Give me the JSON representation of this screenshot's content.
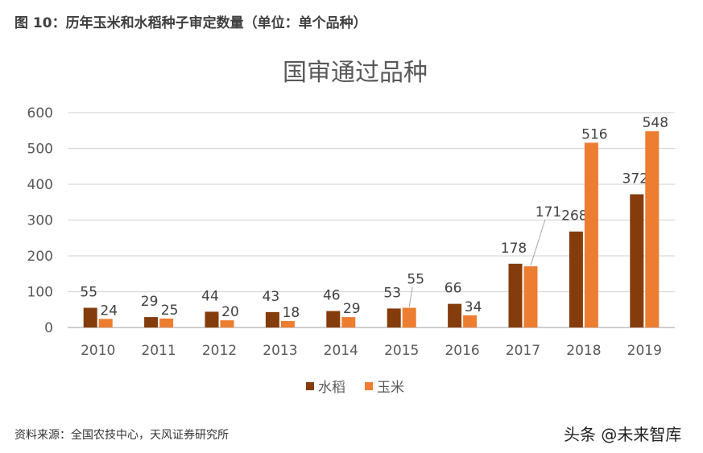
{
  "figure_title": "图 10：历年玉米和水稻种子审定数量（单位：单个品种）",
  "source": "资料来源：全国农技中心，天风证券研究所",
  "watermark": "头条 @未来智库",
  "chart_data": {
    "type": "bar",
    "title": "国审通过品种",
    "categories": [
      "2010",
      "2011",
      "2012",
      "2013",
      "2014",
      "2015",
      "2016",
      "2017",
      "2018",
      "2019"
    ],
    "series": [
      {
        "name": "水稻",
        "color": "#843C0C",
        "values": [
          55,
          29,
          44,
          43,
          46,
          53,
          66,
          178,
          268,
          372
        ]
      },
      {
        "name": "玉米",
        "color": "#ED7D31",
        "values": [
          24,
          25,
          20,
          18,
          29,
          55,
          34,
          171,
          516,
          548
        ]
      }
    ],
    "ylim": [
      0,
      600
    ],
    "yticks": [
      0,
      100,
      200,
      300,
      400,
      500,
      600
    ],
    "grid": true,
    "legend": "bottom",
    "data_labels": true
  }
}
